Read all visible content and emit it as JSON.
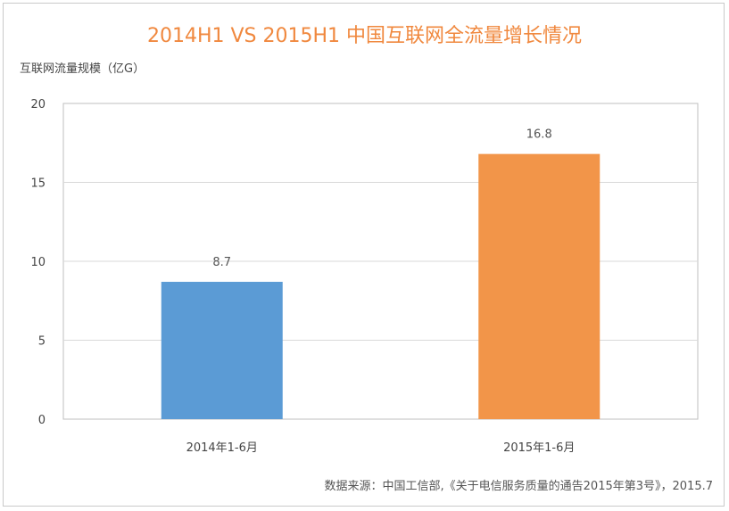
{
  "chart_data": {
    "type": "bar",
    "title": "2014H1 VS 2015H1 中国互联网全流量增长情况",
    "ylabel": "互联网流量规模（亿G）",
    "xlabel": "",
    "categories": [
      "2014年1-6月",
      "2015年1-6月"
    ],
    "values": [
      8.7,
      16.8
    ],
    "data_labels": [
      "8.7",
      "16.8"
    ],
    "colors": [
      "#5b9bd5",
      "#f29549"
    ],
    "ylim": [
      0,
      20
    ],
    "yticks": [
      0,
      5,
      10,
      15,
      20
    ],
    "grid": true,
    "legend": "none"
  },
  "source": "数据来源：中国工信部,《关于电信服务质量的通告2015年第3号》，2015.7",
  "colors": {
    "title": "#f0883e",
    "grid": "#d9d9d9",
    "axis": "#bfbfbf"
  }
}
